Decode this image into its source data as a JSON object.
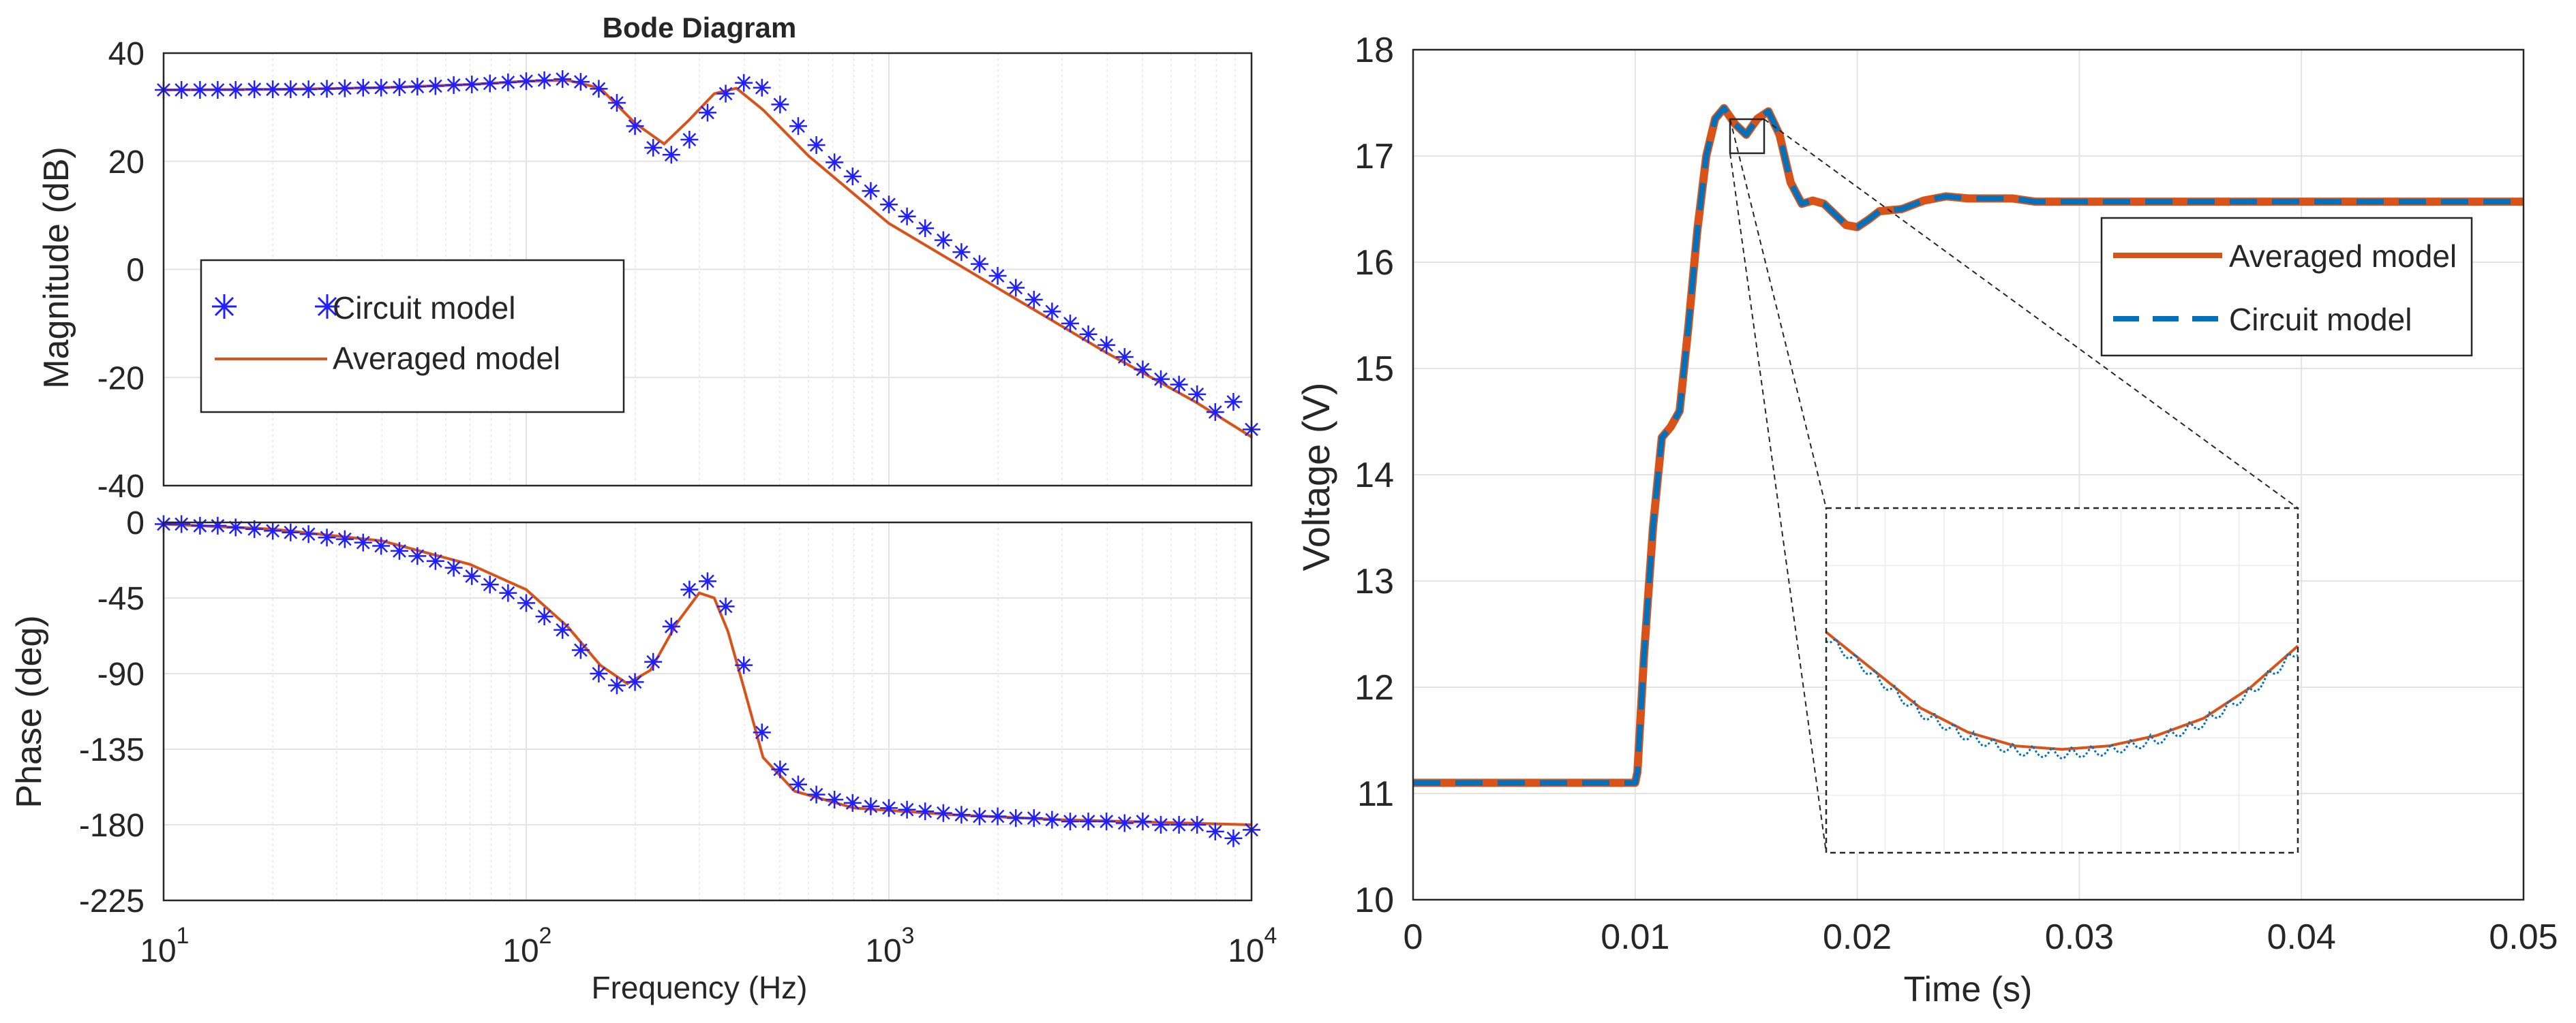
{
  "colors": {
    "circuit_marker": "#1f1fff",
    "averaged_line": "#d95319",
    "circuit_line": "#0072bd",
    "axis": "#262626",
    "grid": "#e3e3e3"
  },
  "chart_data": [
    {
      "id": "bode-magnitude",
      "type": "line",
      "title": "Bode Diagram",
      "xlabel": "",
      "ylabel": "Magnitude (dB)",
      "xscale": "log",
      "xlim": [
        10,
        10000
      ],
      "ylim": [
        -40,
        40
      ],
      "yticks": [
        -40,
        -20,
        0,
        20,
        40
      ],
      "ytick_labels": [
        "-40",
        "-20",
        "0",
        "20",
        "40"
      ],
      "grid": true,
      "legend": {
        "placement": "left",
        "entries": [
          {
            "label": "Circuit model",
            "style": "marker-asterisk",
            "color": "#1f1fff"
          },
          {
            "label": "Averaged model",
            "style": "solid-line",
            "color": "#d95319"
          }
        ]
      },
      "series": [
        {
          "name": "Averaged model",
          "style": "line",
          "x": [
            10,
            20,
            40,
            70,
            100,
            130,
            160,
            200,
            240,
            280,
            330,
            380,
            450,
            600,
            1000,
            2000,
            4000,
            7000,
            10000
          ],
          "y": [
            33.2,
            33.3,
            33.6,
            34.2,
            34.8,
            35,
            33.5,
            27,
            23.2,
            27.5,
            32.5,
            33.5,
            29.5,
            21,
            8.5,
            -3.5,
            -15.5,
            -24.5,
            -31
          ]
        },
        {
          "name": "Circuit model",
          "style": "marker",
          "x": [
            10,
            11.2,
            12.6,
            14.1,
            15.8,
            17.8,
            20,
            22.4,
            25.1,
            28.2,
            31.6,
            35.5,
            39.8,
            44.7,
            50.1,
            56.2,
            63.1,
            70.8,
            79.4,
            89.1,
            100,
            112.2,
            125.9,
            141.3,
            158.5,
            177.8,
            199.5,
            223.9,
            251.2,
            281.8,
            316.2,
            354.8,
            398.1,
            446.7,
            501.2,
            562.3,
            631,
            707.9,
            794.3,
            891.3,
            1000,
            1122,
            1259,
            1413,
            1585,
            1778,
            1995,
            2239,
            2512,
            2818,
            3162,
            3548,
            3981,
            4467,
            5012,
            5623,
            6310,
            7079,
            7943,
            8913,
            10000
          ],
          "y": [
            33.2,
            33.2,
            33.2,
            33.2,
            33.2,
            33.3,
            33.3,
            33.3,
            33.3,
            33.4,
            33.5,
            33.6,
            33.6,
            33.7,
            33.8,
            33.9,
            34.1,
            34.2,
            34.4,
            34.6,
            34.8,
            35,
            35.2,
            34.7,
            33.4,
            30.8,
            26.5,
            22.5,
            21.2,
            24,
            29,
            32.5,
            34.5,
            33.6,
            30.5,
            26.5,
            23,
            19.8,
            17.2,
            14.5,
            12,
            9.8,
            7.6,
            5.4,
            3.2,
            1,
            -1.2,
            -3.4,
            -5.6,
            -7.8,
            -10,
            -12,
            -14,
            -16.2,
            -18.5,
            -20.3,
            -21.3,
            -23.1,
            -26.4,
            -24.5,
            -29.6
          ]
        }
      ]
    },
    {
      "id": "bode-phase",
      "type": "line",
      "title": "",
      "xlabel": "Frequency  (Hz)",
      "ylabel": "Phase (deg)",
      "xscale": "log",
      "xlim": [
        10,
        10000
      ],
      "ylim": [
        -225,
        0
      ],
      "yticks": [
        -225,
        -180,
        -135,
        -90,
        -45,
        0
      ],
      "ytick_labels": [
        "-225",
        "-180",
        "-135",
        "-90",
        "-45",
        "0"
      ],
      "xtick_base": "10",
      "xtick_exponents": [
        "1",
        "2",
        "3",
        "4"
      ],
      "grid": true,
      "series": [
        {
          "name": "Averaged model",
          "style": "line",
          "x": [
            10,
            20,
            40,
            70,
            100,
            130,
            160,
            190,
            220,
            260,
            300,
            330,
            360,
            400,
            450,
            550,
            800,
            1500,
            3000,
            10000
          ],
          "y": [
            -1,
            -4,
            -11,
            -25,
            -40,
            -62,
            -85,
            -96,
            -88,
            -60,
            -42,
            -45,
            -65,
            -100,
            -140,
            -160,
            -170,
            -174,
            -177,
            -180
          ]
        },
        {
          "name": "Circuit model",
          "style": "marker",
          "x": [
            10,
            11.2,
            12.6,
            14.1,
            15.8,
            17.8,
            20,
            22.4,
            25.1,
            28.2,
            31.6,
            35.5,
            39.8,
            44.7,
            50.1,
            56.2,
            63.1,
            70.8,
            79.4,
            89.1,
            100,
            112.2,
            125.9,
            141.3,
            158.5,
            177.8,
            199.5,
            223.9,
            251.2,
            281.8,
            316.2,
            354.8,
            398.1,
            446.7,
            501.2,
            562.3,
            631,
            707.9,
            794.3,
            891.3,
            1000,
            1122,
            1259,
            1413,
            1585,
            1778,
            1995,
            2239,
            2512,
            2818,
            3162,
            3548,
            3981,
            4467,
            5012,
            5623,
            6310,
            7079,
            7943,
            8913,
            10000
          ],
          "y": [
            -1,
            -1,
            -2,
            -2,
            -3,
            -4,
            -5,
            -6,
            -7,
            -9,
            -10,
            -12,
            -14,
            -17,
            -20,
            -23,
            -27,
            -32,
            -37,
            -42,
            -48,
            -56,
            -64,
            -76,
            -90,
            -97,
            -95,
            -83,
            -62,
            -40,
            -35,
            -50,
            -85,
            -125,
            -147,
            -156,
            -162,
            -165,
            -167,
            -169,
            -170,
            -171,
            -172,
            -173,
            -174,
            -175,
            -175,
            -176,
            -176,
            -177,
            -178,
            -178,
            -178,
            -179,
            -178,
            -180,
            -180,
            -180,
            -184,
            -188,
            -183
          ]
        }
      ]
    },
    {
      "id": "voltage-step",
      "type": "line",
      "title": "",
      "xlabel": "Time (s)",
      "ylabel": "Voltage (V)",
      "xlim": [
        0,
        0.05
      ],
      "ylim": [
        10,
        18
      ],
      "xticks": [
        0,
        0.01,
        0.02,
        0.03,
        0.04,
        0.05
      ],
      "xtick_labels": [
        "0",
        "0.01",
        "0.02",
        "0.03",
        "0.04",
        "0.05"
      ],
      "yticks": [
        10,
        11,
        12,
        13,
        14,
        15,
        16,
        17,
        18
      ],
      "ytick_labels": [
        "10",
        "11",
        "12",
        "13",
        "14",
        "15",
        "16",
        "17",
        "18"
      ],
      "grid": true,
      "legend": {
        "placement": "top-right",
        "entries": [
          {
            "label": "Averaged model",
            "style": "solid-line",
            "color": "#d95319"
          },
          {
            "label": "Circuit model",
            "style": "dashed-line",
            "color": "#0072bd"
          }
        ]
      },
      "series": [
        {
          "name": "Averaged model",
          "x": [
            0,
            0.01,
            0.0101,
            0.0104,
            0.0108,
            0.0112,
            0.0116,
            0.012,
            0.0124,
            0.0128,
            0.0132,
            0.0136,
            0.014,
            0.0145,
            0.015,
            0.0155,
            0.016,
            0.0165,
            0.017,
            0.0175,
            0.018,
            0.0185,
            0.019,
            0.0195,
            0.02,
            0.0205,
            0.021,
            0.022,
            0.023,
            0.024,
            0.025,
            0.026,
            0.027,
            0.028,
            0.03,
            0.035,
            0.04,
            0.045,
            0.05
          ],
          "y": [
            11.1,
            11.1,
            11.2,
            12.3,
            13.5,
            14.35,
            14.45,
            14.6,
            15.4,
            16.3,
            17.0,
            17.35,
            17.45,
            17.3,
            17.2,
            17.35,
            17.42,
            17.2,
            16.75,
            16.55,
            16.58,
            16.55,
            16.45,
            16.35,
            16.33,
            16.4,
            16.48,
            16.5,
            16.58,
            16.62,
            16.6,
            16.6,
            16.6,
            16.57,
            16.57,
            16.57,
            16.57,
            16.57,
            16.57
          ]
        },
        {
          "name": "Circuit model",
          "x": [
            0,
            0.01,
            0.0101,
            0.0104,
            0.0108,
            0.0112,
            0.0116,
            0.012,
            0.0124,
            0.0128,
            0.0132,
            0.0136,
            0.014,
            0.0145,
            0.015,
            0.0155,
            0.016,
            0.0165,
            0.017,
            0.0175,
            0.018,
            0.0185,
            0.019,
            0.0195,
            0.02,
            0.0205,
            0.021,
            0.022,
            0.023,
            0.024,
            0.025,
            0.026,
            0.027,
            0.028,
            0.03,
            0.035,
            0.04,
            0.045,
            0.05
          ],
          "y": [
            11.1,
            11.1,
            11.2,
            12.3,
            13.5,
            14.35,
            14.45,
            14.6,
            15.4,
            16.3,
            17.0,
            17.35,
            17.45,
            17.3,
            17.2,
            17.35,
            17.42,
            17.2,
            16.75,
            16.55,
            16.58,
            16.55,
            16.45,
            16.35,
            16.33,
            16.4,
            16.48,
            16.5,
            16.58,
            16.62,
            16.6,
            16.6,
            16.6,
            16.57,
            16.57,
            16.57,
            16.57,
            16.57,
            16.57
          ]
        }
      ],
      "inset": {
        "zoom_xlim": [
          0.0146,
          0.0159
        ],
        "zoom_ylim": [
          17.22,
          17.32
        ],
        "averaged_model": {
          "x": [
            0,
            0.1,
            0.2,
            0.3,
            0.4,
            0.5,
            0.6,
            0.7,
            0.8,
            0.9,
            1
          ],
          "y": [
            0.64,
            0.53,
            0.42,
            0.35,
            0.31,
            0.3,
            0.31,
            0.34,
            0.39,
            0.48,
            0.6
          ]
        },
        "circuit_ripple_cycles": 12,
        "circuit_ripple_amplitude": 0.035
      }
    }
  ]
}
